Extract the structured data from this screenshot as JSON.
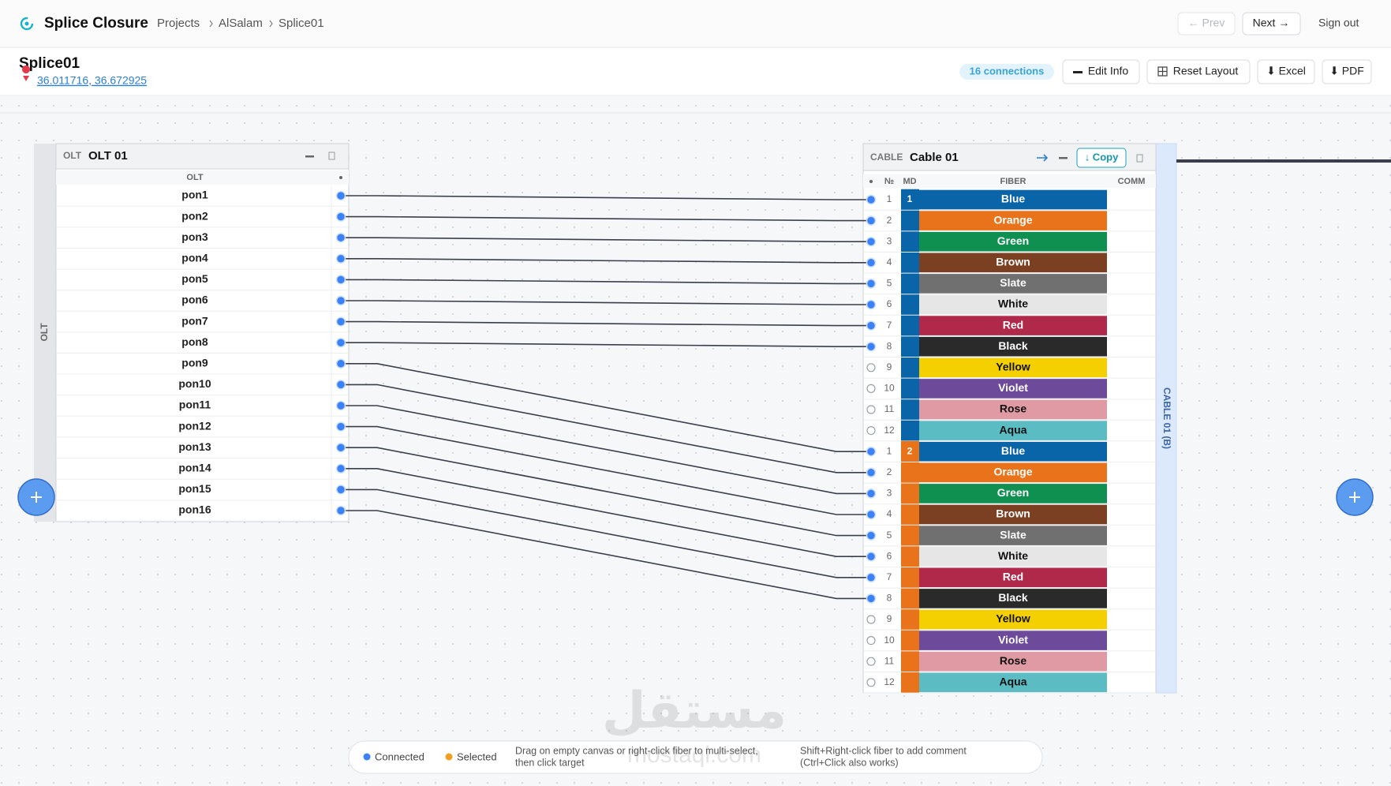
{
  "header": {
    "app_title": "Splice Closure",
    "breadcrumb": [
      "Projects",
      "AlSalam",
      "Splice01"
    ],
    "prev": "← Prev",
    "next": "Next →",
    "sign_out": "Sign out"
  },
  "info": {
    "title": "Splice01",
    "coordinates": "36.011716, 36.672925",
    "connections_badge": "16 connections",
    "buttons": [
      "Edit Info",
      "Reset Layout",
      "⬇ Excel",
      "⬇ PDF"
    ]
  },
  "olt": {
    "type": "OLT",
    "name": "OLT 01",
    "column": "OLT",
    "side_label": "OLT",
    "ports": [
      "pon1",
      "pon2",
      "pon3",
      "pon4",
      "pon5",
      "pon6",
      "pon7",
      "pon8",
      "pon9",
      "pon10",
      "pon11",
      "pon12",
      "pon13",
      "pon14",
      "pon15",
      "pon16"
    ]
  },
  "cable": {
    "type": "CABLE",
    "name": "Cable 01",
    "copy": "↓ Copy",
    "side_label": "CABLE 01 (B)",
    "columns": [
      "№",
      "MD",
      "FIBER",
      "COMM"
    ],
    "modules": [
      {
        "label": 1,
        "color": "#0a64a8",
        "fibers": [
          {
            "no": 1,
            "name": "Blue",
            "color": "#0a64a8",
            "connected": true
          },
          {
            "no": 2,
            "name": "Orange",
            "color": "#e8731a",
            "connected": true
          },
          {
            "no": 3,
            "name": "Green",
            "color": "#0f9050",
            "connected": true
          },
          {
            "no": 4,
            "name": "Brown",
            "color": "#7b3f22",
            "connected": true
          },
          {
            "no": 5,
            "name": "Slate",
            "color": "#707070",
            "connected": true
          },
          {
            "no": 6,
            "name": "White",
            "color": "#e6e6e6",
            "connected": true
          },
          {
            "no": 7,
            "name": "Red",
            "color": "#b0294a",
            "connected": true
          },
          {
            "no": 8,
            "name": "Black",
            "color": "#2a2a2a",
            "connected": true
          },
          {
            "no": 9,
            "name": "Yellow",
            "color": "#f5d000",
            "connected": false
          },
          {
            "no": 10,
            "name": "Violet",
            "color": "#6e4a9a",
            "connected": false
          },
          {
            "no": 11,
            "name": "Rose",
            "color": "#e09aa4",
            "connected": false
          },
          {
            "no": 12,
            "name": "Aqua",
            "color": "#5bbcc4",
            "connected": false
          }
        ]
      },
      {
        "label": 2,
        "color": "#e8731a",
        "fibers": [
          {
            "no": 1,
            "name": "Blue",
            "color": "#0a64a8",
            "connected": true
          },
          {
            "no": 2,
            "name": "Orange",
            "color": "#e8731a",
            "connected": true
          },
          {
            "no": 3,
            "name": "Green",
            "color": "#0f9050",
            "connected": true
          },
          {
            "no": 4,
            "name": "Brown",
            "color": "#7b3f22",
            "connected": true
          },
          {
            "no": 5,
            "name": "Slate",
            "color": "#707070",
            "connected": true
          },
          {
            "no": 6,
            "name": "White",
            "color": "#e6e6e6",
            "connected": true
          },
          {
            "no": 7,
            "name": "Red",
            "color": "#b0294a",
            "connected": true
          },
          {
            "no": 8,
            "name": "Black",
            "color": "#2a2a2a",
            "connected": true
          },
          {
            "no": 9,
            "name": "Yellow",
            "color": "#f5d000",
            "connected": false
          },
          {
            "no": 10,
            "name": "Violet",
            "color": "#6e4a9a",
            "connected": false
          },
          {
            "no": 11,
            "name": "Rose",
            "color": "#e09aa4",
            "connected": false
          },
          {
            "no": 12,
            "name": "Aqua",
            "color": "#5bbcc4",
            "connected": false
          }
        ]
      }
    ]
  },
  "legend": {
    "connected": "Connected",
    "selected": "Selected",
    "hint_select": [
      "Drag on empty canvas or right-click fiber to multi-select,",
      "then click target"
    ],
    "hint_comment": [
      "Shift+Right-click fiber to add comment",
      "(Ctrl+Click also works)"
    ]
  },
  "watermark": [
    "مستقل",
    "mostaql.com"
  ]
}
